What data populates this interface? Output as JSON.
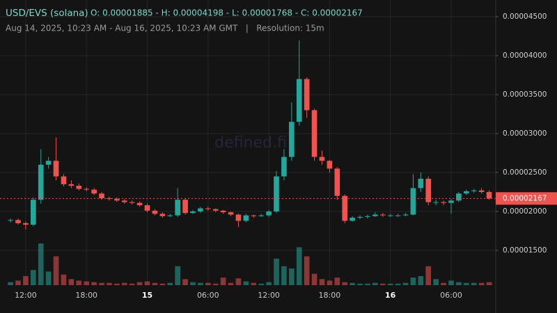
{
  "chart_data": {
    "type": "candlestick",
    "title": "USD/EVS (solana)",
    "ohlc_summary": "O: 0.00001885 - H: 0.00004198 - L: 0.00001768 - C: 0.00002167",
    "subtitle": "Aug 14, 2025, 10:23 AM - Aug 16, 2025, 10:23 AM GMT   |   Resolution: 15m",
    "watermark": "defined.fi",
    "up_color": "#26a69a",
    "down_color": "#ef5350",
    "grid": true,
    "x": [
      10.5,
      11.25,
      12,
      12.75,
      13.5,
      14.25,
      15,
      15.75,
      16.5,
      17.25,
      18,
      18.75,
      19.5,
      20.25,
      21,
      21.75,
      22.5,
      23.25,
      24,
      24.75,
      25.5,
      26.25,
      27,
      27.75,
      28.5,
      29.25,
      30,
      30.75,
      31.5,
      32.25,
      33,
      33.75,
      34.5,
      35.25,
      36,
      36.75,
      37.5,
      38.25,
      39,
      39.75,
      40.5,
      41.25,
      42,
      42.75,
      43.5,
      44.25,
      45,
      45.75,
      46.5,
      47.25,
      48,
      48.75,
      49.5,
      50.25,
      51,
      51.75,
      52.5,
      53.25,
      54,
      54.75,
      55.5,
      56.25,
      57,
      57.75
    ],
    "open": [
      1.885e-05,
      1.89e-05,
      1.85e-05,
      1.83e-05,
      2.15e-05,
      2.6e-05,
      2.65e-05,
      2.45e-05,
      2.35e-05,
      2.33e-05,
      2.29e-05,
      2.28e-05,
      2.23e-05,
      2.17e-05,
      2.16e-05,
      2.14e-05,
      2.12e-05,
      2.11e-05,
      2.08e-05,
      2.01e-05,
      1.97e-05,
      1.94e-05,
      1.95e-05,
      2.15e-05,
      1.98e-05,
      2e-05,
      2.04e-05,
      2.03e-05,
      2.01e-05,
      1.99e-05,
      1.96e-05,
      1.88e-05,
      1.95e-05,
      1.94e-05,
      1.95e-05,
      2e-05,
      2.45e-05,
      2.7e-05,
      3.15e-05,
      3.7e-05,
      3.3e-05,
      2.7e-05,
      2.65e-05,
      2.55e-05,
      2.2e-05,
      1.88e-05,
      1.92e-05,
      1.93e-05,
      1.94e-05,
      1.96e-05,
      1.95e-05,
      1.95e-05,
      1.95e-05,
      1.96e-05,
      2.3e-05,
      2.42e-05,
      2.12e-05,
      2.12e-05,
      2.11e-05,
      2.14e-05,
      2.23e-05,
      2.26e-05,
      2.27e-05,
      2.25e-05
    ],
    "high": [
      1.91e-05,
      1.91e-05,
      1.87e-05,
      2.18e-05,
      2.8e-05,
      2.7e-05,
      2.95e-05,
      2.48e-05,
      2.4e-05,
      2.36e-05,
      2.31e-05,
      2.3e-05,
      2.25e-05,
      2.19e-05,
      2.18e-05,
      2.16e-05,
      2.14e-05,
      2.13e-05,
      2.1e-05,
      2.03e-05,
      1.99e-05,
      1.97e-05,
      2.3e-05,
      2.17e-05,
      2.02e-05,
      2.06e-05,
      2.06e-05,
      2.04e-05,
      2.02e-05,
      2e-05,
      1.97e-05,
      1.97e-05,
      1.96e-05,
      1.97e-05,
      2.02e-05,
      2.52e-05,
      2.8e-05,
      3.4e-05,
      4.198e-05,
      3.72e-05,
      3.32e-05,
      2.78e-05,
      2.66e-05,
      2.57e-05,
      2.22e-05,
      1.94e-05,
      1.95e-05,
      1.96e-05,
      1.99e-05,
      1.98e-05,
      1.97e-05,
      1.97e-05,
      1.98e-05,
      2.48e-05,
      2.5e-05,
      2.45e-05,
      2.15e-05,
      2.14e-05,
      2.16e-05,
      2.25e-05,
      2.28e-05,
      2.29e-05,
      2.3e-05,
      2.27e-05
    ],
    "low": [
      1.86e-05,
      1.83e-05,
      1.768e-05,
      1.81e-05,
      2.1e-05,
      2.55e-05,
      2.4e-05,
      2.32e-05,
      2.3e-05,
      2.27e-05,
      2.26e-05,
      2.21e-05,
      2.15e-05,
      2.14e-05,
      2.12e-05,
      2.1e-05,
      2.09e-05,
      2.06e-05,
      1.99e-05,
      1.95e-05,
      1.92e-05,
      1.93e-05,
      1.93e-05,
      1.96e-05,
      1.97e-05,
      1.98e-05,
      2.01e-05,
      1.99e-05,
      1.97e-05,
      1.94e-05,
      1.8e-05,
      1.86e-05,
      1.92e-05,
      1.93e-05,
      1.93e-05,
      1.98e-05,
      2.4e-05,
      2.65e-05,
      3.1e-05,
      3.2e-05,
      2.65e-05,
      2.6e-05,
      2.5e-05,
      2.15e-05,
      1.85e-05,
      1.87e-05,
      1.9e-05,
      1.91e-05,
      1.93e-05,
      1.93e-05,
      1.93e-05,
      1.93e-05,
      1.94e-05,
      1.95e-05,
      2.25e-05,
      2.08e-05,
      2.08e-05,
      2.08e-05,
      1.97e-05,
      2.12e-05,
      2.21e-05,
      2.24e-05,
      2.23e-05,
      2.15e-05
    ],
    "close": [
      1.89e-05,
      1.85e-05,
      1.83e-05,
      2.15e-05,
      2.6e-05,
      2.65e-05,
      2.45e-05,
      2.35e-05,
      2.33e-05,
      2.29e-05,
      2.28e-05,
      2.23e-05,
      2.17e-05,
      2.16e-05,
      2.14e-05,
      2.12e-05,
      2.11e-05,
      2.08e-05,
      2.01e-05,
      1.97e-05,
      1.94e-05,
      1.95e-05,
      2.15e-05,
      1.98e-05,
      2e-05,
      2.04e-05,
      2.03e-05,
      2.01e-05,
      1.99e-05,
      1.96e-05,
      1.88e-05,
      1.95e-05,
      1.94e-05,
      1.95e-05,
      2e-05,
      2.45e-05,
      2.7e-05,
      3.15e-05,
      3.7e-05,
      3.3e-05,
      2.7e-05,
      2.65e-05,
      2.55e-05,
      2.2e-05,
      1.88e-05,
      1.92e-05,
      1.93e-05,
      1.94e-05,
      1.96e-05,
      1.95e-05,
      1.95e-05,
      1.95e-05,
      1.96e-05,
      2.3e-05,
      2.42e-05,
      2.12e-05,
      2.12e-05,
      2.11e-05,
      2.14e-05,
      2.23e-05,
      2.26e-05,
      2.27e-05,
      2.25e-05,
      2.167e-05
    ],
    "volume": [
      4,
      6,
      12,
      20,
      55,
      18,
      38,
      14,
      8,
      6,
      5,
      4,
      3,
      3,
      2,
      3,
      2,
      4,
      5,
      3,
      2,
      3,
      25,
      8,
      4,
      3,
      3,
      2,
      10,
      3,
      9,
      5,
      3,
      2,
      4,
      35,
      25,
      22,
      50,
      38,
      15,
      8,
      6,
      10,
      4,
      3,
      2,
      2,
      3,
      2,
      2,
      2,
      3,
      10,
      12,
      25,
      8,
      3,
      6,
      4,
      3,
      3,
      3,
      4
    ],
    "xlim": [
      10.15,
      58.4
    ],
    "xticks": [
      {
        "value": 12,
        "label": "12:00"
      },
      {
        "value": 18,
        "label": "18:00"
      },
      {
        "value": 24,
        "label": "15"
      },
      {
        "value": 30,
        "label": "06:00"
      },
      {
        "value": 36,
        "label": "12:00"
      },
      {
        "value": 42,
        "label": "18:00"
      },
      {
        "value": 48,
        "label": "16"
      },
      {
        "value": 54,
        "label": "06:00"
      }
    ],
    "ylim": [
      1.054e-05,
      4.714e-05
    ],
    "yticks": [
      {
        "value": 1.5e-05,
        "label": "0.00001500"
      },
      {
        "value": 2e-05,
        "label": "0.00002000"
      },
      {
        "value": 2.5e-05,
        "label": "0.00002500"
      },
      {
        "value": 3e-05,
        "label": "0.00003000"
      },
      {
        "value": 3.5e-05,
        "label": "0.00003500"
      },
      {
        "value": 4e-05,
        "label": "0.00004000"
      },
      {
        "value": 4.5e-05,
        "label": "0.00004500"
      }
    ]
  }
}
